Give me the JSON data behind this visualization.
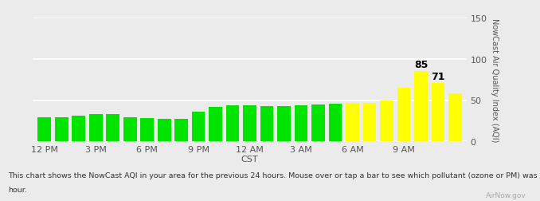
{
  "bars": [
    {
      "value": 29,
      "color": "#00e400"
    },
    {
      "value": 29,
      "color": "#00e400"
    },
    {
      "value": 31,
      "color": "#00e400"
    },
    {
      "value": 33,
      "color": "#00e400"
    },
    {
      "value": 33,
      "color": "#00e400"
    },
    {
      "value": 29,
      "color": "#00e400"
    },
    {
      "value": 28,
      "color": "#00e400"
    },
    {
      "value": 27,
      "color": "#00e400"
    },
    {
      "value": 27,
      "color": "#00e400"
    },
    {
      "value": 36,
      "color": "#00e400"
    },
    {
      "value": 42,
      "color": "#00e400"
    },
    {
      "value": 44,
      "color": "#00e400"
    },
    {
      "value": 44,
      "color": "#00e400"
    },
    {
      "value": 43,
      "color": "#00e400"
    },
    {
      "value": 43,
      "color": "#00e400"
    },
    {
      "value": 44,
      "color": "#00e400"
    },
    {
      "value": 45,
      "color": "#00e400"
    },
    {
      "value": 46,
      "color": "#00e400"
    },
    {
      "value": 47,
      "color": "#ffff00"
    },
    {
      "value": 47,
      "color": "#ffff00"
    },
    {
      "value": 50,
      "color": "#ffff00"
    },
    {
      "value": 65,
      "color": "#ffff00"
    },
    {
      "value": 85,
      "color": "#ffff00",
      "annotate": "85"
    },
    {
      "value": 71,
      "color": "#ffff00",
      "annotate": "71"
    },
    {
      "value": 58,
      "color": "#ffff00"
    }
  ],
  "ylim": [
    0,
    150
  ],
  "yticks": [
    0,
    50,
    100,
    150
  ],
  "xlabel": "CST",
  "ylabel": "NowCast Air Quality Index (AQI)",
  "background_color": "#ebebeb",
  "plot_bg_color": "#ebebeb",
  "grid_color": "#ffffff",
  "footnote_line1": "This chart shows the NowCast AQI in your area for the previous 24 hours. Mouse over or tap a bar to see which pollutant (ozone or PM) was highest that",
  "footnote_line2": "hour.",
  "watermark": "AirNow.gov",
  "tick_labels": [
    "12 PM",
    "3 PM",
    "6 PM",
    "9 PM",
    "12 AM",
    "3 AM",
    "6 AM",
    "9 AM"
  ],
  "tick_positions": [
    0,
    3,
    6,
    9,
    12,
    15,
    18,
    21
  ],
  "bar_width": 0.78
}
